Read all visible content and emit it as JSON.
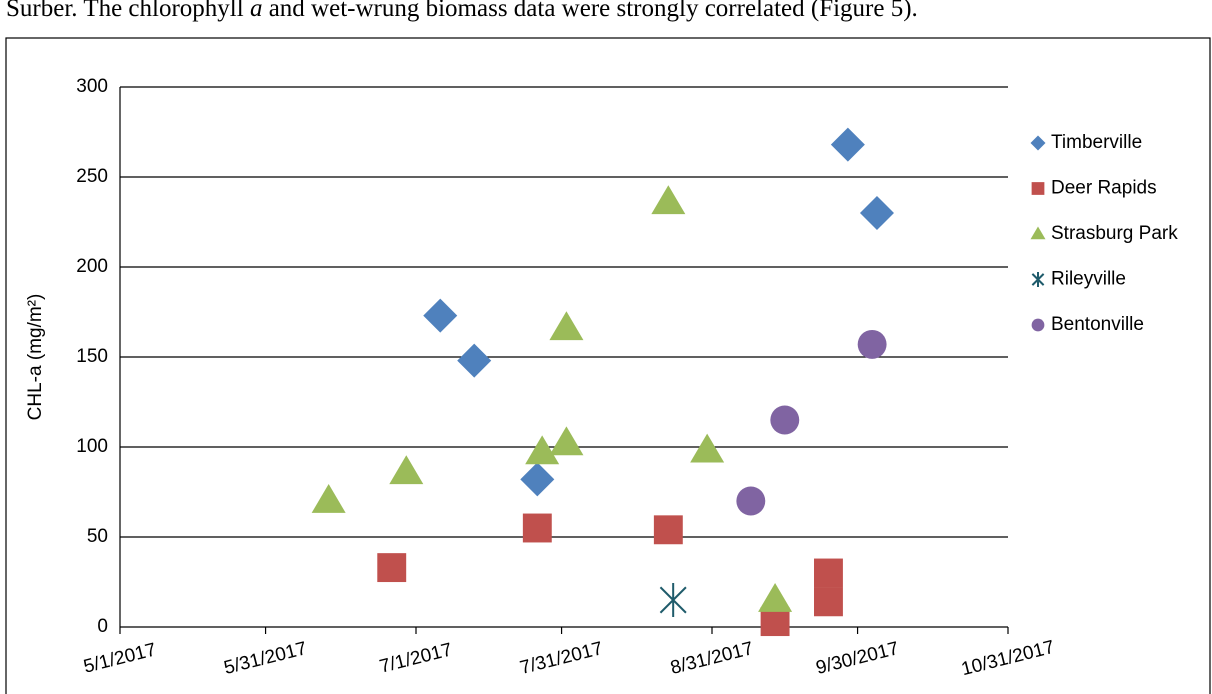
{
  "text_above": [
    "Surber.  The chlorophyll ",
    "a",
    " and wet-wrung biomass data were strongly correlated (Figure 5)."
  ],
  "chart_data": {
    "type": "scatter",
    "ylabel": "CHL-a (mg/m²)",
    "xlim": [
      "2017-05-01",
      "2017-10-31"
    ],
    "xticks": [
      {
        "value": "2017-05-01",
        "label": "5/1/2017"
      },
      {
        "value": "2017-05-31",
        "label": "5/31/2017"
      },
      {
        "value": "2017-07-01",
        "label": "7/1/2017"
      },
      {
        "value": "2017-07-31",
        "label": "7/31/2017"
      },
      {
        "value": "2017-08-31",
        "label": "8/31/2017"
      },
      {
        "value": "2017-09-30",
        "label": "9/30/2017"
      },
      {
        "value": "2017-10-31",
        "label": "10/31/2017"
      }
    ],
    "ylim": [
      0,
      300
    ],
    "yticks": [
      0,
      50,
      100,
      150,
      200,
      250,
      300
    ],
    "grid": true,
    "legend": "right",
    "series": [
      {
        "name": "Timberville",
        "color": "#4f81bd",
        "marker": "diamond",
        "x": [
          "2017-07-06",
          "2017-07-13",
          "2017-07-26",
          "2017-09-28",
          "2017-10-04"
        ],
        "values": [
          173,
          148,
          82,
          268,
          230
        ]
      },
      {
        "name": "Deer Rapids",
        "color": "#c0504d",
        "marker": "square",
        "x": [
          "2017-06-26",
          "2017-07-26",
          "2017-08-22",
          "2017-09-13",
          "2017-09-24",
          "2017-09-24"
        ],
        "values": [
          33,
          55,
          54,
          3,
          30,
          14
        ]
      },
      {
        "name": "Strasburg Park",
        "color": "#9bbb59",
        "marker": "triangle",
        "x": [
          "2017-06-13",
          "2017-06-29",
          "2017-07-27",
          "2017-08-01",
          "2017-08-01",
          "2017-08-22",
          "2017-08-30",
          "2017-09-13"
        ],
        "values": [
          70,
          86,
          97,
          102,
          166,
          236,
          98,
          15
        ]
      },
      {
        "name": "Rileyville",
        "color": "#1f5b6b",
        "marker": "star",
        "x": [
          "2017-08-23"
        ],
        "values": [
          15
        ]
      },
      {
        "name": "Bentonville",
        "color": "#8064a2",
        "marker": "circle",
        "x": [
          "2017-09-08",
          "2017-09-15",
          "2017-10-03"
        ],
        "values": [
          70,
          115,
          157
        ]
      }
    ]
  }
}
